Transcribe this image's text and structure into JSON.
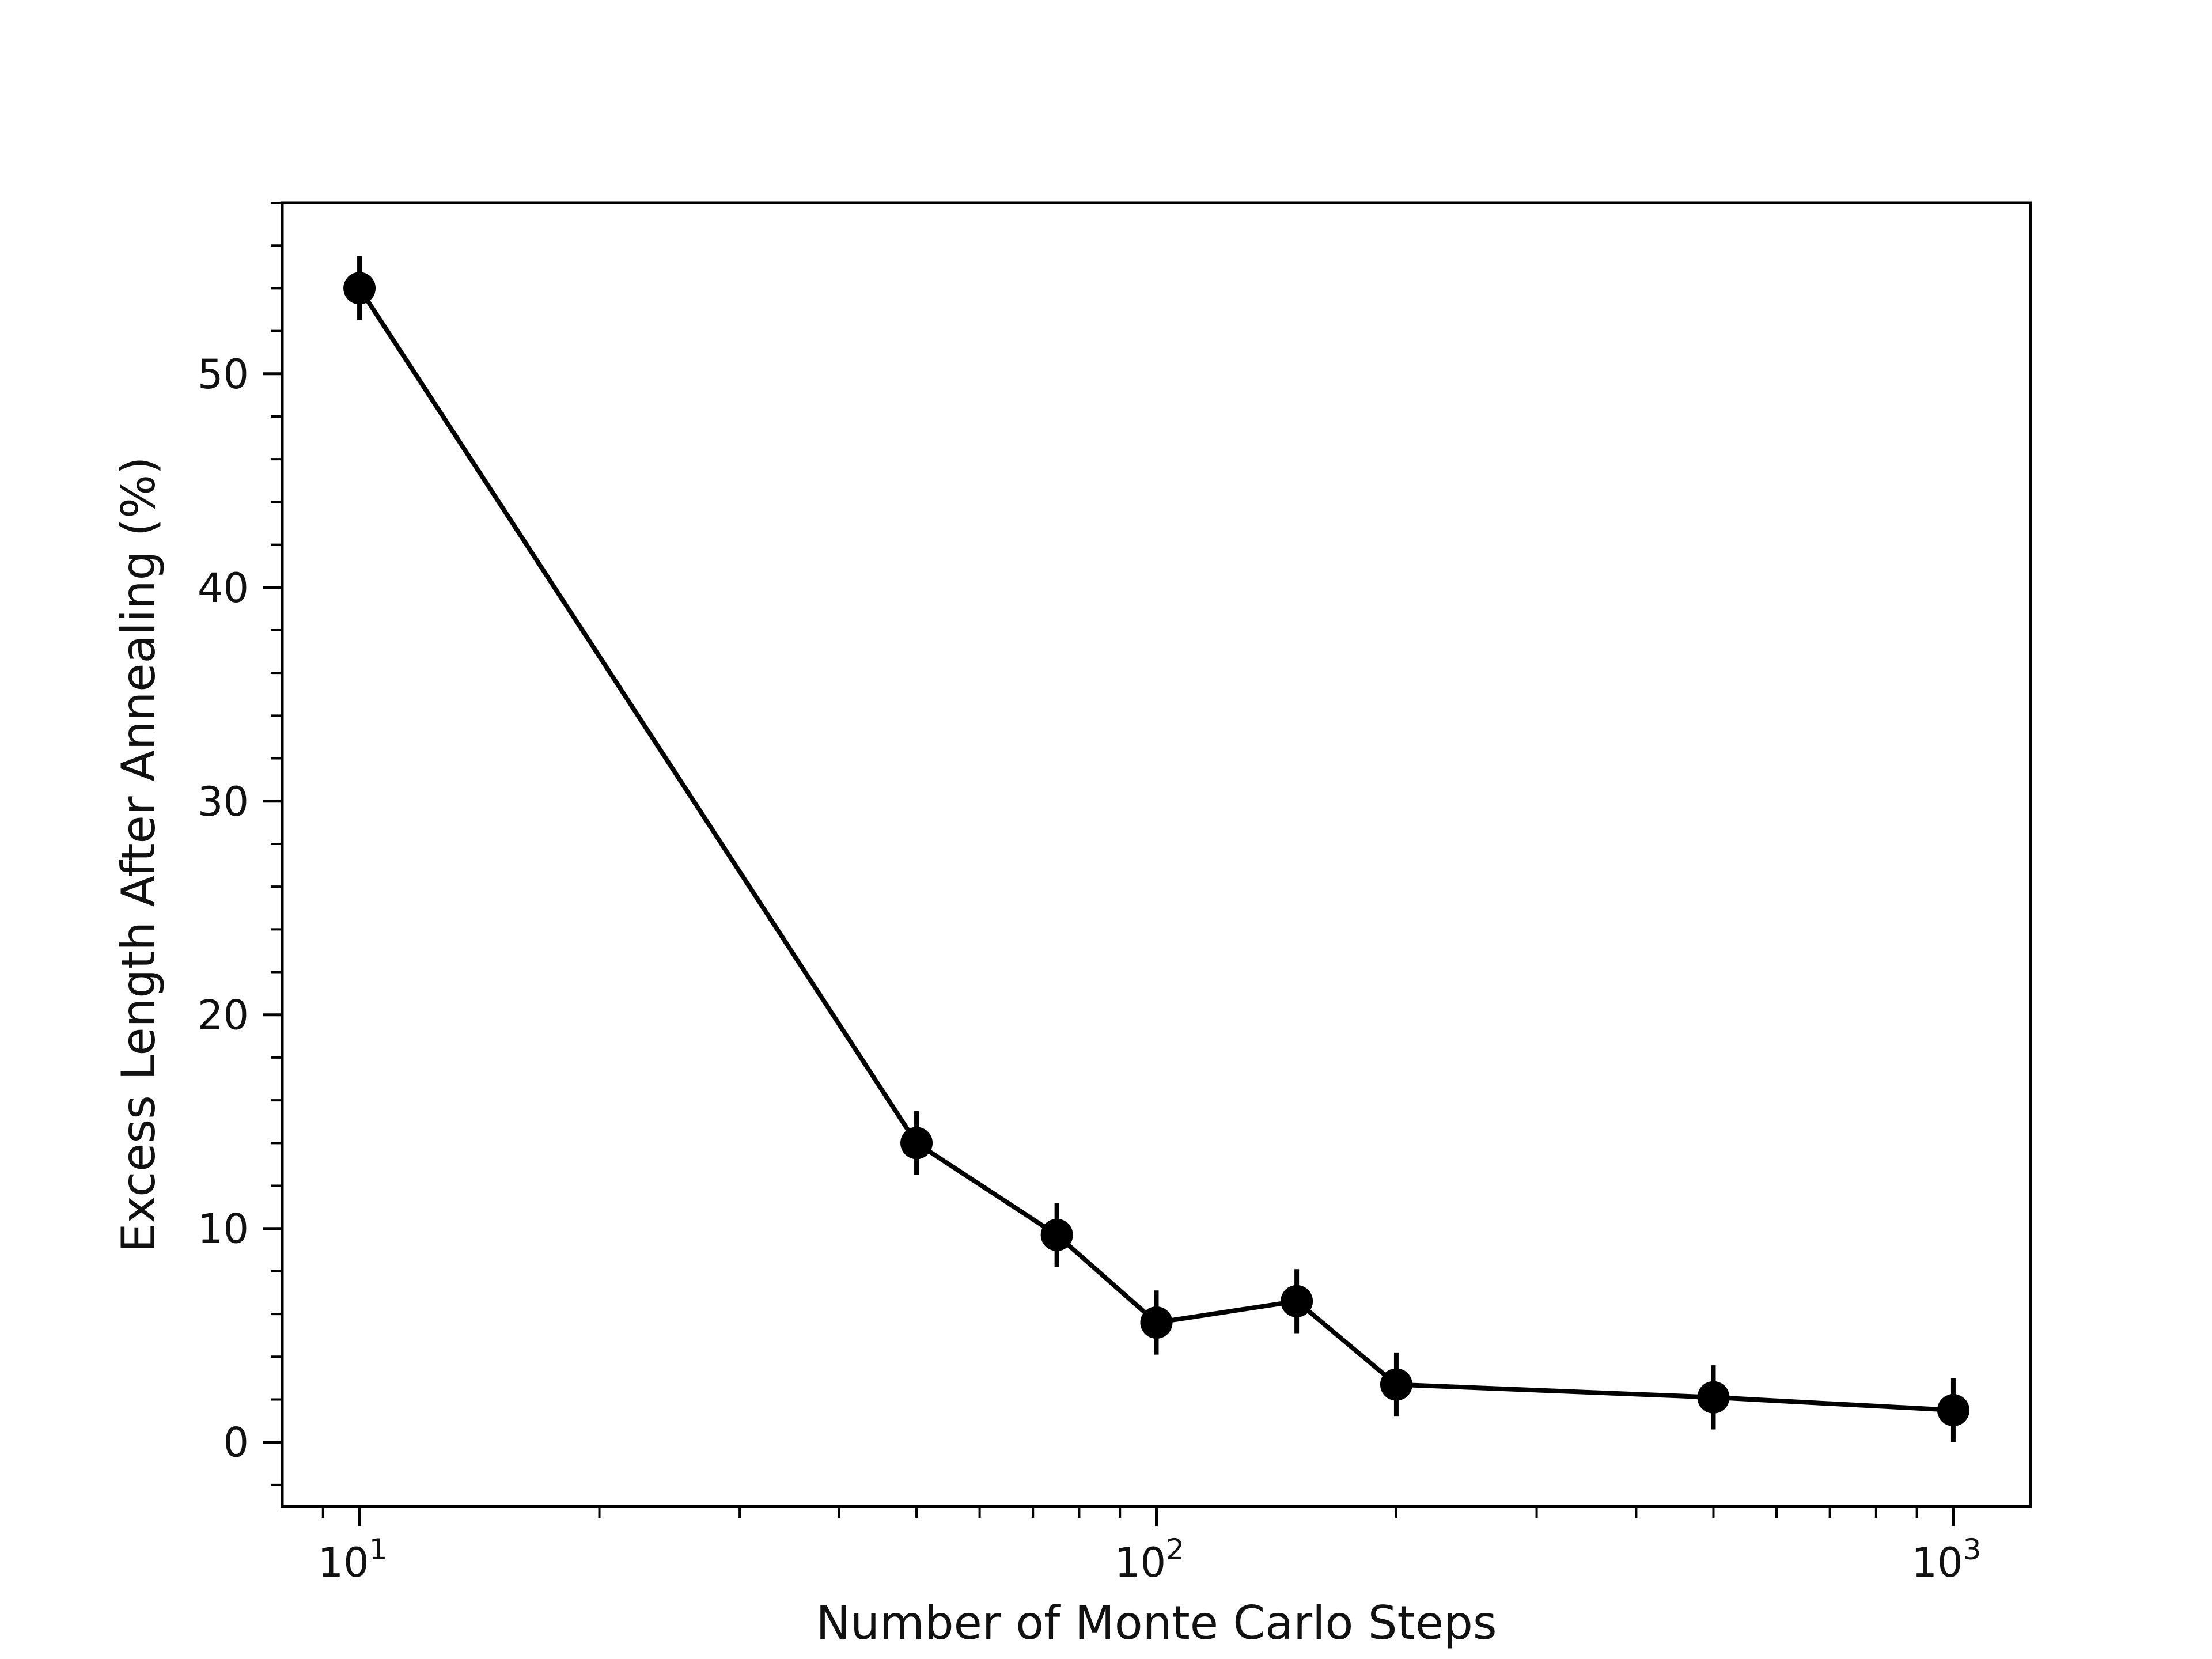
{
  "chart_data": {
    "type": "line",
    "xlabel": "Number of Monte Carlo Steps",
    "ylabel": "Excess Length After Annealing (%)",
    "xscale": "log",
    "xlim": [
      8,
      1250
    ],
    "ylim": [
      -3,
      58
    ],
    "grid": false,
    "x_ticks": [
      {
        "value": 10,
        "base": "10",
        "exp": "1"
      },
      {
        "value": 100,
        "base": "10",
        "exp": "2"
      },
      {
        "value": 1000,
        "base": "10",
        "exp": "3"
      }
    ],
    "y_ticks": [
      {
        "value": 0,
        "label": "0"
      },
      {
        "value": 10,
        "label": "10"
      },
      {
        "value": 20,
        "label": "20"
      },
      {
        "value": 30,
        "label": "30"
      },
      {
        "value": 40,
        "label": "40"
      },
      {
        "value": 50,
        "label": "50"
      }
    ],
    "series": [
      {
        "color": "#000000",
        "marker": "circle",
        "x": [
          10,
          50,
          75,
          100,
          150,
          200,
          500,
          1000
        ],
        "y": [
          54.0,
          14.0,
          9.7,
          5.6,
          6.6,
          2.7,
          2.1,
          1.5
        ],
        "yerr": [
          1.5,
          1.5,
          1.5,
          1.5,
          1.5,
          1.5,
          1.5,
          1.5
        ]
      }
    ]
  }
}
